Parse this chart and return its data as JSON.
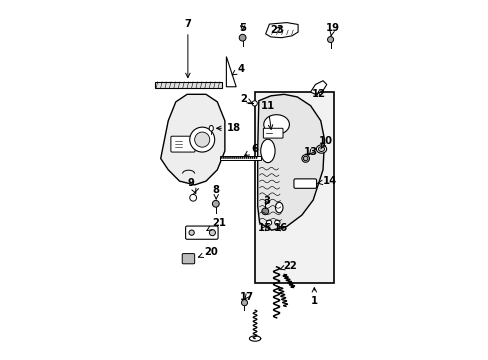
{
  "bg_color": "#ffffff",
  "line_color": "#000000",
  "label_color": "#000000",
  "figsize": [
    4.89,
    3.6
  ],
  "dpi": 100,
  "labels": {
    "1": {
      "lpos": [
        4.35,
        1.55
      ],
      "aend": [
        4.35,
        2.0
      ]
    },
    "2": {
      "lpos": [
        2.48,
        6.9
      ],
      "aend": [
        2.72,
        6.78
      ]
    },
    "3": {
      "lpos": [
        3.1,
        4.2
      ],
      "aend": [
        3.05,
        4.01
      ]
    },
    "4": {
      "lpos": [
        2.42,
        7.7
      ],
      "aend": [
        2.15,
        7.52
      ]
    },
    "5": {
      "lpos": [
        2.45,
        8.78
      ],
      "aend": [
        2.45,
        8.62
      ]
    },
    "6": {
      "lpos": [
        2.78,
        5.58
      ],
      "aend": [
        2.42,
        5.34
      ]
    },
    "7": {
      "lpos": [
        1.0,
        8.88
      ],
      "aend": [
        1.0,
        7.36
      ]
    },
    "8": {
      "lpos": [
        1.75,
        4.48
      ],
      "aend": [
        1.75,
        4.22
      ]
    },
    "9": {
      "lpos": [
        1.08,
        4.68
      ],
      "aend": [
        1.22,
        4.38
      ]
    },
    "10": {
      "lpos": [
        4.65,
        5.78
      ],
      "aend": [
        4.52,
        5.57
      ]
    },
    "11": {
      "lpos": [
        3.12,
        6.72
      ],
      "aend": [
        3.22,
        5.99
      ]
    },
    "12": {
      "lpos": [
        4.46,
        7.02
      ],
      "aend": [
        4.46,
        7.18
      ]
    },
    "13": {
      "lpos": [
        4.26,
        5.48
      ],
      "aend": [
        4.16,
        5.36
      ]
    },
    "14": {
      "lpos": [
        4.76,
        4.72
      ],
      "aend": [
        4.42,
        4.66
      ]
    },
    "15": {
      "lpos": [
        3.04,
        3.48
      ],
      "aend": [
        3.15,
        3.61
      ]
    },
    "16": {
      "lpos": [
        3.46,
        3.48
      ],
      "aend": [
        3.36,
        3.61
      ]
    },
    "17": {
      "lpos": [
        2.56,
        1.66
      ],
      "aend": [
        2.5,
        1.58
      ]
    },
    "18": {
      "lpos": [
        2.22,
        6.12
      ],
      "aend": [
        1.66,
        6.12
      ]
    },
    "19": {
      "lpos": [
        4.84,
        8.78
      ],
      "aend": [
        4.79,
        8.55
      ]
    },
    "20": {
      "lpos": [
        1.62,
        2.84
      ],
      "aend": [
        1.19,
        2.67
      ]
    },
    "21": {
      "lpos": [
        1.84,
        3.62
      ],
      "aend": [
        1.42,
        3.36
      ]
    },
    "22": {
      "lpos": [
        3.72,
        2.48
      ],
      "aend": [
        3.42,
        2.38
      ]
    },
    "23": {
      "lpos": [
        3.36,
        8.72
      ],
      "aend": [
        3.52,
        8.88
      ]
    }
  }
}
